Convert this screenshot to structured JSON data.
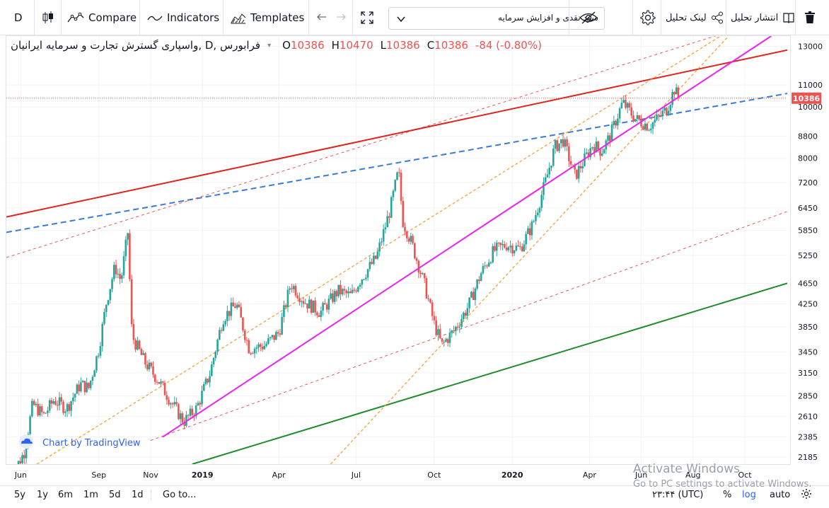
{
  "toolbar": {
    "symbol_short": "D",
    "compare_label": "Compare",
    "indicators_label": "Indicators",
    "templates_label": "Templates",
    "search_value": "سود نقدی و افزایش سرمایه",
    "share_link_label": "لینک تحلیل",
    "publish_label": "انتشار تحلیل"
  },
  "legend": {
    "title": "فرابورس ,D ,واسپاری گسترش تجارت و سرمایه ایرانیان",
    "o_label": "O",
    "o_value": "10386",
    "h_label": "H",
    "h_value": "10470",
    "l_label": "L",
    "l_value": "10386",
    "c_label": "C",
    "c_value": "10386",
    "change": "-84 (-0.80%)"
  },
  "attribution": "Chart by TradingView",
  "bottom": {
    "ranges": [
      "5y",
      "1y",
      "6m",
      "1m",
      "5d",
      "1d"
    ],
    "goto_label": "Go to...",
    "time_label": "۲۳:۴۴ (UTC)",
    "percent_label": "%",
    "log_label": "log",
    "auto_label": "auto"
  },
  "watermark": {
    "line1": "Activate Windows",
    "line2": "Go to PC settings to activate Windows."
  },
  "colors": {
    "up": "#26a69a",
    "down": "#ef5350",
    "red_line": "#e0241b",
    "blue_dash": "#3a7bd5",
    "magenta": "#ee22ee",
    "orange_dash": "#f5a23d",
    "green_line": "#1e8c2a",
    "price_tag": "#ef5350"
  },
  "chart_data": {
    "type": "candlestick",
    "scale": "log",
    "ylim": [
      2120,
      13600
    ],
    "y_ticks": [
      13000,
      11000,
      10000,
      8800,
      8000,
      7200,
      6450,
      5850,
      5250,
      4650,
      4250,
      3850,
      3450,
      3150,
      2850,
      2610,
      2385,
      2185
    ],
    "y_tick_labels": [
      "13000",
      "11000",
      "10000",
      "8800",
      "8000",
      "7200",
      "6450",
      "5850",
      "5250",
      "4650",
      "4250",
      "3850",
      "3450",
      "3150",
      "2850",
      "2610",
      "2385",
      "2185"
    ],
    "x_range": [
      "2018-05-15",
      "2020-11-20"
    ],
    "x_ticks": [
      {
        "date": "2018-06-01",
        "label": "Jun"
      },
      {
        "date": "2018-09-01",
        "label": "Sep"
      },
      {
        "date": "2018-11-01",
        "label": "Nov"
      },
      {
        "date": "2019-01-01",
        "label": "2019"
      },
      {
        "date": "2019-04-01",
        "label": "Apr"
      },
      {
        "date": "2019-07-01",
        "label": "Jul"
      },
      {
        "date": "2019-10-01",
        "label": "Oct"
      },
      {
        "date": "2020-01-01",
        "label": "2020"
      },
      {
        "date": "2020-04-01",
        "label": "Apr"
      },
      {
        "date": "2020-06-01",
        "label": "Jun"
      },
      {
        "date": "2020-08-01",
        "label": "Aug"
      },
      {
        "date": "2020-10-01",
        "label": "Oct"
      }
    ],
    "last_price": 10386,
    "last_price_label": "10386",
    "price_path": [
      [
        "2018-05-20",
        2000
      ],
      [
        "2018-06-05",
        2230
      ],
      [
        "2018-06-15",
        2750
      ],
      [
        "2018-06-28",
        2620
      ],
      [
        "2018-07-10",
        2800
      ],
      [
        "2018-07-25",
        2700
      ],
      [
        "2018-08-10",
        3000
      ],
      [
        "2018-08-20",
        2950
      ],
      [
        "2018-09-01",
        3500
      ],
      [
        "2018-09-10",
        4300
      ],
      [
        "2018-09-20",
        5000
      ],
      [
        "2018-09-27",
        4700
      ],
      [
        "2018-10-05",
        5800
      ],
      [
        "2018-10-10",
        3700
      ],
      [
        "2018-10-25",
        3300
      ],
      [
        "2018-11-10",
        3050
      ],
      [
        "2018-11-25",
        2780
      ],
      [
        "2018-12-10",
        2550
      ],
      [
        "2018-12-25",
        2700
      ],
      [
        "2019-01-10",
        3150
      ],
      [
        "2019-01-25",
        4000
      ],
      [
        "2019-02-10",
        4250
      ],
      [
        "2019-02-25",
        3500
      ],
      [
        "2019-03-15",
        3550
      ],
      [
        "2019-04-01",
        3750
      ],
      [
        "2019-04-15",
        4650
      ],
      [
        "2019-05-01",
        4300
      ],
      [
        "2019-05-20",
        4100
      ],
      [
        "2019-06-10",
        4500
      ],
      [
        "2019-06-25",
        4400
      ],
      [
        "2019-07-05",
        4700
      ],
      [
        "2019-07-25",
        5200
      ],
      [
        "2019-08-10",
        6400
      ],
      [
        "2019-08-20",
        7600
      ],
      [
        "2019-08-25",
        6100
      ],
      [
        "2019-09-05",
        5500
      ],
      [
        "2019-09-20",
        4600
      ],
      [
        "2019-10-01",
        3900
      ],
      [
        "2019-10-10",
        3550
      ],
      [
        "2019-10-25",
        3800
      ],
      [
        "2019-11-10",
        4200
      ],
      [
        "2019-11-25",
        4850
      ],
      [
        "2019-12-10",
        5350
      ],
      [
        "2019-12-25",
        5500
      ],
      [
        "2020-01-10",
        5400
      ],
      [
        "2020-01-25",
        6000
      ],
      [
        "2020-02-10",
        7300
      ],
      [
        "2020-02-20",
        8400
      ],
      [
        "2020-03-01",
        8650
      ],
      [
        "2020-03-15",
        7400
      ],
      [
        "2020-03-25",
        7900
      ],
      [
        "2020-04-05",
        8500
      ],
      [
        "2020-04-15",
        8250
      ],
      [
        "2020-04-25",
        8800
      ],
      [
        "2020-05-10",
        10200
      ],
      [
        "2020-05-25",
        9500
      ],
      [
        "2020-06-10",
        9200
      ],
      [
        "2020-06-20",
        9500
      ],
      [
        "2020-07-01",
        9900
      ],
      [
        "2020-07-10",
        10800
      ],
      [
        "2020-07-15",
        10386
      ]
    ],
    "trend_lines": [
      {
        "name": "red",
        "style": "solid",
        "points": [
          [
            "2018-05-15",
            6200
          ],
          [
            "2020-11-20",
            12800
          ]
        ]
      },
      {
        "name": "blue",
        "style": "dashed",
        "points": [
          [
            "2018-05-15",
            5800
          ],
          [
            "2020-11-20",
            10600
          ]
        ]
      },
      {
        "name": "magenta",
        "style": "solid",
        "points": [
          [
            "2018-11-15",
            2385
          ],
          [
            "2020-11-01",
            13600
          ]
        ]
      },
      {
        "name": "green",
        "style": "solid",
        "points": [
          [
            "2018-12-20",
            2120
          ],
          [
            "2020-11-20",
            4650
          ]
        ]
      },
      {
        "name": "red-dotted-upper",
        "style": "dotted",
        "points": [
          [
            "2018-05-15",
            5200
          ],
          [
            "2020-11-20",
            15000
          ]
        ]
      },
      {
        "name": "red-dotted-lower",
        "style": "dotted",
        "points": [
          [
            "2018-11-01",
            2350
          ],
          [
            "2020-11-20",
            6350
          ]
        ]
      },
      {
        "name": "orange-upper",
        "style": "dotted",
        "points": [
          [
            "2018-06-20",
            2120
          ],
          [
            "2020-09-15",
            14000
          ]
        ]
      },
      {
        "name": "orange-lower",
        "style": "dotted",
        "points": [
          [
            "2019-06-01",
            2120
          ],
          [
            "2020-09-10",
            13500
          ]
        ]
      }
    ]
  }
}
